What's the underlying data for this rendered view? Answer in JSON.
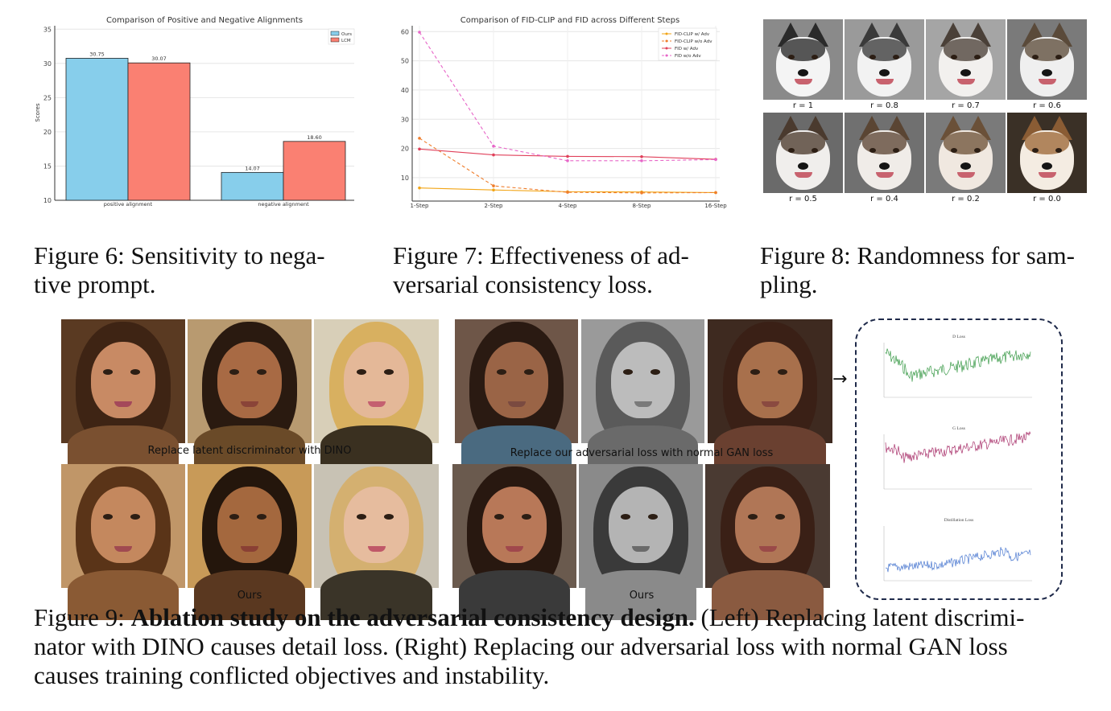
{
  "fig6": {
    "caption_line1": "Figure 6:  Sensitivity to nega-",
    "caption_line2": "tive prompt."
  },
  "fig7": {
    "caption_line1": "Figure 7:  Effectiveness of ad-",
    "caption_line2": "versarial consistency loss."
  },
  "fig8": {
    "caption_line1": "Figure 8: Randomness for sam-",
    "caption_line2": "pling.",
    "labels": [
      "r = 1",
      "r = 0.8",
      "r = 0.7",
      "r = 0.6",
      "r = 0.5",
      "r = 0.4",
      "r = 0.2",
      "r = 0.0"
    ]
  },
  "fig9": {
    "left_top_label": "Replace latent discriminator with DINO",
    "left_bottom_label": "Ours",
    "right_top_label": "Replace our adversarial loss with normal GAN loss",
    "right_bottom_label": "Ours",
    "caption_prefix": "Figure 9: ",
    "caption_bold": "Ablation study on the adversarial consistency design.",
    "caption_rest1": " (Left) Replacing latent discrimi-",
    "caption_line2": "nator with DINO causes detail loss. (Right) Replacing our adversarial loss with normal GAN loss",
    "caption_line3": "causes training conflicted objectives and instability.",
    "loss_titles": [
      "D Loss",
      "G Loss",
      "Distillation Loss"
    ],
    "loss_colors": [
      "#3a9a48",
      "#a8306a",
      "#4a78d0"
    ],
    "arrow": "→"
  },
  "chart_data": [
    {
      "type": "bar",
      "title": "Comparison of Positive and Negative Alignments",
      "xlabel": "",
      "ylabel": "Scores",
      "categories": [
        "positive alignment",
        "negative alignment"
      ],
      "series": [
        {
          "name": "Ours",
          "values": [
            30.75,
            14.07
          ],
          "color": "#87ceeb"
        },
        {
          "name": "LCM",
          "values": [
            30.07,
            18.6
          ],
          "color": "#fa8072"
        }
      ],
      "value_labels": [
        [
          "30.75",
          "14.07"
        ],
        [
          "30.07",
          "18.60"
        ]
      ],
      "ylim": [
        10,
        35.5
      ],
      "yticks": [
        10,
        15,
        20,
        25,
        30,
        35
      ],
      "grid": true,
      "legend": "top-right"
    },
    {
      "type": "line",
      "title": "Comparison of FID-CLIP and FID across Different Steps",
      "xlabel": "",
      "ylabel": "",
      "categories": [
        "1-Step",
        "2-Step",
        "4-Step",
        "8-Step",
        "16-Step"
      ],
      "series": [
        {
          "name": "FID-CLIP w/ Adv",
          "values": [
            6.5,
            5.8,
            5.2,
            5.1,
            4.9
          ],
          "color": "#f2a516",
          "dash": false
        },
        {
          "name": "FID-CLIP w/o Adv",
          "values": [
            23.5,
            7.2,
            5.0,
            4.8,
            4.9
          ],
          "color": "#ef7d2b",
          "dash": true
        },
        {
          "name": "FID w/ Adv",
          "values": [
            19.8,
            17.8,
            17.3,
            17.2,
            16.3
          ],
          "color": "#e0405a",
          "dash": false
        },
        {
          "name": "FID w/o Adv",
          "values": [
            59.8,
            20.8,
            15.8,
            15.8,
            16.2
          ],
          "color": "#e766c8",
          "dash": true
        }
      ],
      "ylim": [
        2,
        62
      ],
      "yticks": [
        10,
        20,
        30,
        40,
        50,
        60
      ],
      "grid": true,
      "legend": "top-right"
    }
  ]
}
